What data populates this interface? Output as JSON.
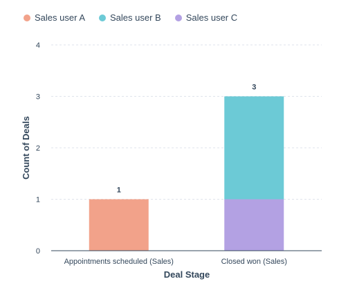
{
  "chart_data": {
    "type": "bar",
    "stacked": true,
    "categories": [
      "Appointments scheduled (Sales)",
      "Closed won (Sales)"
    ],
    "series": [
      {
        "name": "Sales user A",
        "color": "#f2a28a",
        "values": [
          1,
          0
        ]
      },
      {
        "name": "Sales user C",
        "color": "#b3a1e3",
        "values": [
          0,
          1
        ]
      },
      {
        "name": "Sales user B",
        "color": "#6ccad6",
        "values": [
          0,
          2
        ]
      }
    ],
    "totals": [
      1,
      3
    ],
    "xlabel": "Deal Stage",
    "ylabel": "Count of Deals",
    "ylim": [
      0,
      4
    ],
    "yticks": [
      0,
      1,
      2,
      3,
      4
    ],
    "grid": true,
    "legend_position": "top-left",
    "legend": [
      {
        "name": "Sales user A",
        "color": "#f2a28a"
      },
      {
        "name": "Sales user B",
        "color": "#6ccad6"
      },
      {
        "name": "Sales user C",
        "color": "#b3a1e3"
      }
    ]
  }
}
